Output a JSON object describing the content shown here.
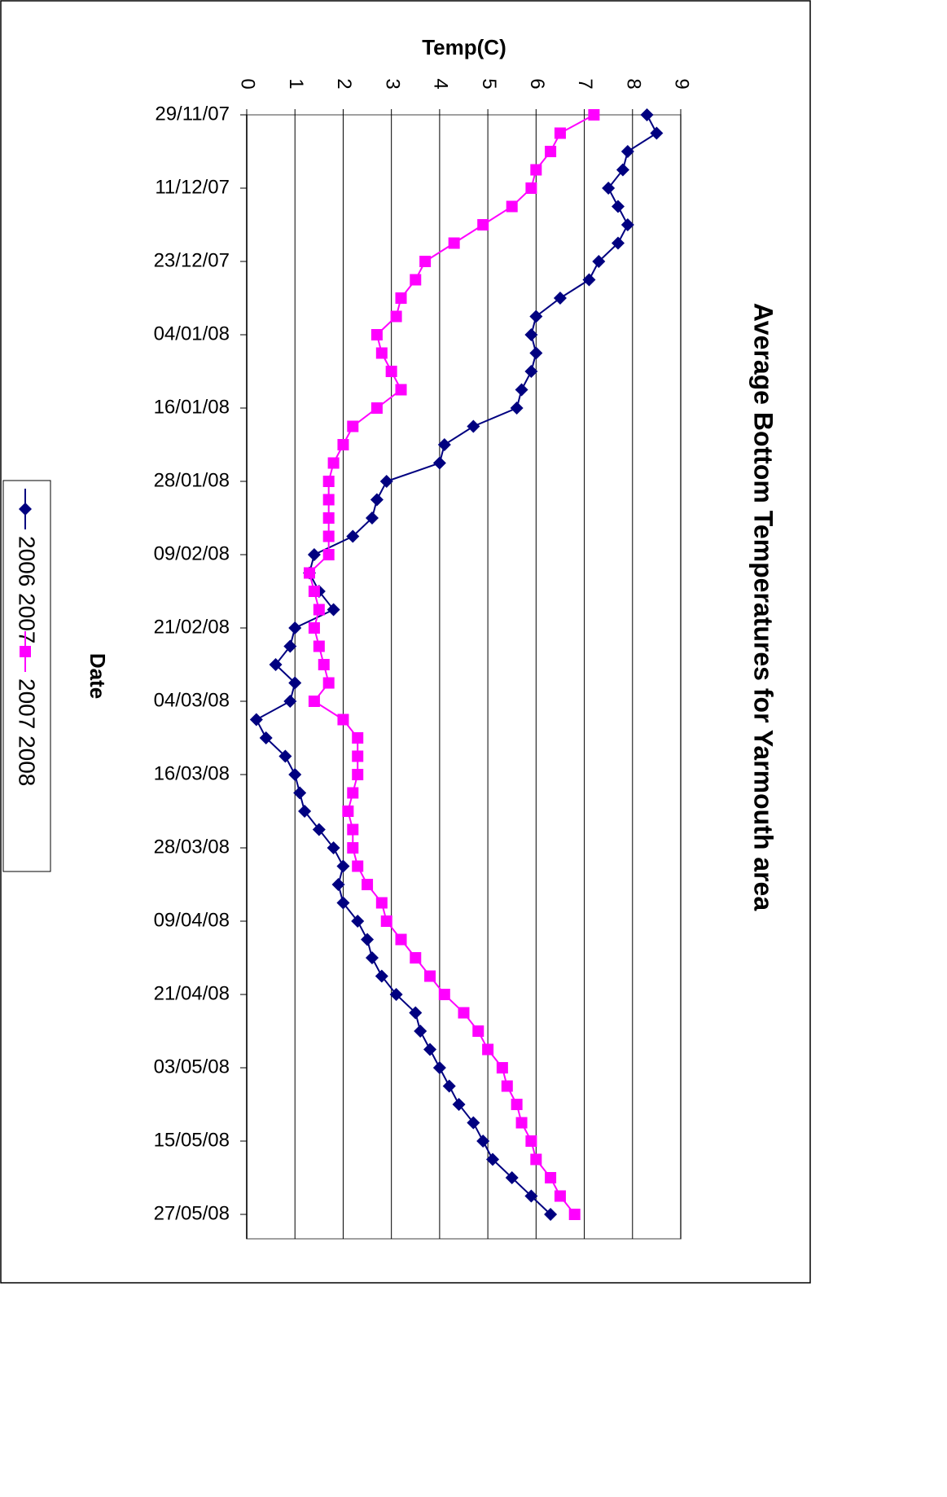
{
  "chart_data": {
    "type": "line",
    "title": "Average Bottom Temperatures for Yarmouth area",
    "x_label": "Date",
    "y_label": "Temp(C)",
    "x": [
      "29/11/07",
      "02/12/07",
      "05/12/07",
      "08/12/07",
      "11/12/07",
      "14/12/07",
      "17/12/07",
      "20/12/07",
      "23/12/07",
      "26/12/07",
      "29/12/07",
      "01/01/08",
      "04/01/08",
      "07/01/08",
      "10/01/08",
      "13/01/08",
      "16/01/08",
      "19/01/08",
      "22/01/08",
      "25/01/08",
      "28/01/08",
      "31/01/08",
      "03/02/08",
      "06/02/08",
      "09/02/08",
      "12/02/08",
      "15/02/08",
      "18/02/08",
      "21/02/08",
      "24/02/08",
      "27/02/08",
      "01/03/08",
      "04/03/08",
      "07/03/08",
      "10/03/08",
      "13/03/08",
      "16/03/08",
      "19/03/08",
      "22/03/08",
      "25/03/08",
      "28/03/08",
      "31/03/08",
      "03/04/08",
      "06/04/08",
      "09/04/08",
      "12/04/08",
      "15/04/08",
      "18/04/08",
      "21/04/08",
      "24/04/08",
      "27/04/08",
      "30/04/08",
      "03/05/08",
      "06/05/08",
      "09/05/08",
      "12/05/08",
      "15/05/08",
      "18/05/08",
      "21/05/08",
      "24/05/08",
      "27/05/08"
    ],
    "xticks": [
      "29/11/07",
      "11/12/07",
      "23/12/07",
      "04/01/08",
      "16/01/08",
      "28/01/08",
      "09/02/08",
      "21/02/08",
      "04/03/08",
      "16/03/08",
      "28/03/08",
      "09/04/08",
      "21/04/08",
      "03/05/08",
      "15/05/08",
      "27/05/08"
    ],
    "ylim": [
      0,
      9
    ],
    "yticks": [
      0,
      1,
      2,
      3,
      4,
      5,
      6,
      7,
      8,
      9
    ],
    "grid": true,
    "legend": "left",
    "orientation": "rotated",
    "series": [
      {
        "name": "2006 2007",
        "color": "#000080",
        "marker": "diamond",
        "values": [
          8.3,
          8.5,
          7.9,
          7.8,
          7.5,
          7.7,
          7.9,
          7.7,
          7.3,
          7.1,
          6.5,
          6.0,
          5.9,
          6.0,
          5.9,
          5.7,
          5.6,
          4.7,
          4.1,
          4.0,
          2.9,
          2.7,
          2.6,
          2.2,
          1.4,
          1.3,
          1.5,
          1.8,
          1.0,
          0.9,
          0.6,
          1.0,
          0.9,
          0.2,
          0.4,
          0.8,
          1.0,
          1.1,
          1.2,
          1.5,
          1.8,
          2.0,
          1.9,
          2.0,
          2.3,
          2.5,
          2.6,
          2.8,
          3.1,
          3.5,
          3.6,
          3.8,
          4.0,
          4.2,
          4.4,
          4.7,
          4.9,
          5.1,
          5.5,
          5.9,
          6.3
        ]
      },
      {
        "name": "2007 2008",
        "color": "#ff00ff",
        "marker": "square",
        "values": [
          7.2,
          6.5,
          6.3,
          6.0,
          5.9,
          5.5,
          4.9,
          4.3,
          3.7,
          3.5,
          3.2,
          3.1,
          2.7,
          2.8,
          3.0,
          3.2,
          2.7,
          2.2,
          2.0,
          1.8,
          1.7,
          1.7,
          1.7,
          1.7,
          1.7,
          1.3,
          1.4,
          1.5,
          1.4,
          1.5,
          1.6,
          1.7,
          1.4,
          2.0,
          2.3,
          2.3,
          2.3,
          2.2,
          2.1,
          2.2,
          2.2,
          2.3,
          2.5,
          2.8,
          2.9,
          3.2,
          3.5,
          3.8,
          4.1,
          4.5,
          4.8,
          5.0,
          5.3,
          5.4,
          5.6,
          5.7,
          5.9,
          6.0,
          6.3,
          6.5,
          6.8
        ]
      }
    ]
  }
}
